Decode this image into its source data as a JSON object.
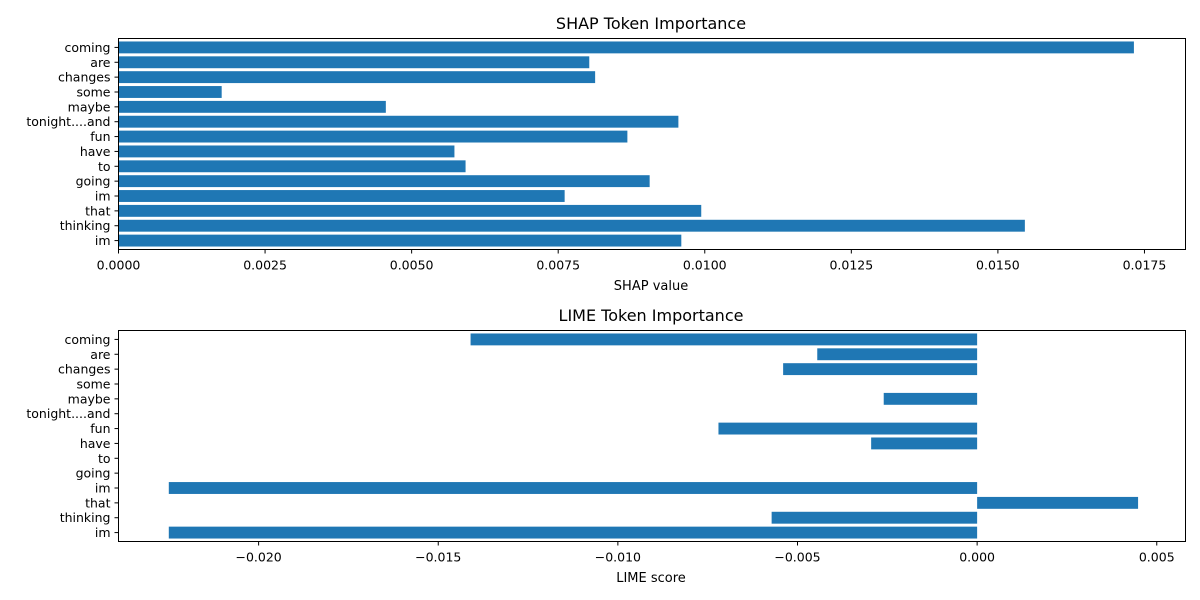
{
  "chart_data": [
    {
      "type": "bar",
      "orientation": "horizontal",
      "title": "SHAP Token Importance",
      "xlabel": "SHAP value",
      "ylabel": "",
      "bar_color": "#1f77b4",
      "categories": [
        "coming",
        "are",
        "changes",
        "some",
        "maybe",
        "tonight....and",
        "fun",
        "have",
        "to",
        "going",
        "im",
        "that",
        "thinking",
        "im"
      ],
      "values": [
        0.01732,
        0.00803,
        0.00813,
        0.00176,
        0.00456,
        0.00955,
        0.00868,
        0.00573,
        0.00592,
        0.00906,
        0.00761,
        0.00994,
        0.01546,
        0.0096
      ],
      "xlim": [
        0,
        0.0182
      ],
      "xticks": [
        0.0,
        0.0025,
        0.005,
        0.0075,
        0.01,
        0.0125,
        0.015,
        0.0175
      ],
      "xtick_labels": [
        "0.0000",
        "0.0025",
        "0.0050",
        "0.0075",
        "0.0100",
        "0.0125",
        "0.0150",
        "0.0175"
      ],
      "grid": false
    },
    {
      "type": "bar",
      "orientation": "horizontal",
      "title": "LIME Token Importance",
      "xlabel": "LIME score",
      "ylabel": "",
      "bar_color": "#1f77b4",
      "categories": [
        "coming",
        "are",
        "changes",
        "some",
        "maybe",
        "tonight....and",
        "fun",
        "have",
        "to",
        "going",
        "im",
        "that",
        "thinking",
        "im"
      ],
      "values": [
        -0.0141,
        -0.00445,
        -0.0054,
        0,
        -0.0026,
        0,
        -0.0072,
        -0.00295,
        0,
        0,
        -0.0225,
        0.00448,
        -0.00572,
        -0.0225
      ],
      "xlim": [
        -0.0239,
        0.0058
      ],
      "xticks": [
        -0.02,
        -0.015,
        -0.01,
        -0.005,
        0.0,
        0.005
      ],
      "xtick_labels": [
        "−0.020",
        "−0.015",
        "−0.010",
        "−0.005",
        "0.000",
        "0.005"
      ],
      "grid": false
    }
  ]
}
